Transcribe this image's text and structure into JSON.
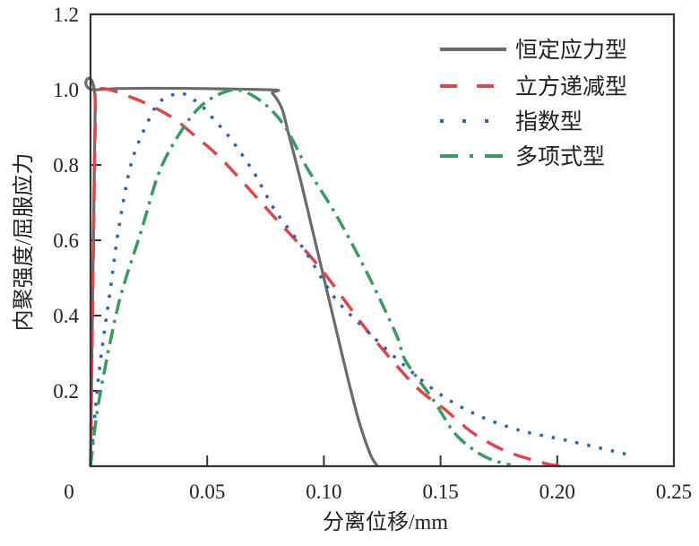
{
  "chart_data": {
    "type": "line",
    "title": "",
    "xlabel": "分离位移/mm",
    "ylabel": "内聚强度/屈服应力",
    "xlim": [
      0,
      0.25
    ],
    "ylim": [
      0,
      1.2
    ],
    "xticks": [
      0,
      0.05,
      0.1,
      0.15,
      0.2,
      0.25
    ],
    "xtick_labels": [
      "0",
      "0.05",
      "0.10",
      "0.15",
      "0.20",
      "0.25"
    ],
    "yticks": [
      0.2,
      0.4,
      0.6,
      0.8,
      1.0,
      1.2
    ],
    "ytick_labels": [
      "0.2",
      "0.4",
      "0.6",
      "0.8",
      "1.0",
      "1.2"
    ],
    "grid": false,
    "legend_position": "top-right",
    "series": [
      {
        "name": "恒定应力型",
        "color": "#6b6b6b",
        "style": "solid",
        "x": [
          0,
          0.002,
          0.003,
          0.075,
          0.078,
          0.082,
          0.085,
          0.09,
          0.095,
          0.1,
          0.105,
          0.11,
          0.115,
          0.12,
          0.123
        ],
        "y": [
          0,
          0.95,
          1.0,
          1.0,
          0.99,
          0.95,
          0.88,
          0.76,
          0.63,
          0.5,
          0.37,
          0.24,
          0.12,
          0.03,
          0
        ]
      },
      {
        "name": "立方递减型",
        "color": "#d9484d",
        "style": "dashed",
        "x": [
          0,
          0.002,
          0.003,
          0.019,
          0.034,
          0.045,
          0.057,
          0.079,
          0.098,
          0.119,
          0.139,
          0.152,
          0.164,
          0.178,
          0.195,
          0.203
        ],
        "y": [
          0,
          0.9,
          1.0,
          0.976,
          0.93,
          0.876,
          0.81,
          0.66,
          0.53,
          0.357,
          0.214,
          0.15,
          0.088,
          0.04,
          0.007,
          0
        ]
      },
      {
        "name": "指数型",
        "color": "#2f63b0",
        "style": "dotted",
        "x": [
          0,
          0.0035,
          0.0085,
          0.0123,
          0.0177,
          0.025,
          0.03,
          0.039,
          0.047,
          0.053,
          0.06,
          0.07,
          0.079,
          0.091,
          0.101,
          0.107,
          0.12,
          0.134,
          0.15,
          0.166,
          0.184,
          0.203,
          0.231
        ],
        "y": [
          0,
          0.24,
          0.47,
          0.64,
          0.81,
          0.92,
          0.97,
          0.99,
          0.96,
          0.92,
          0.87,
          0.78,
          0.68,
          0.58,
          0.48,
          0.43,
          0.35,
          0.27,
          0.19,
          0.135,
          0.095,
          0.07,
          0.03
        ]
      },
      {
        "name": "多项式型",
        "color": "#3a9a62",
        "style": "dashdot",
        "x": [
          0,
          0.0035,
          0.012,
          0.0215,
          0.03,
          0.041,
          0.05,
          0.062,
          0.073,
          0.083,
          0.093,
          0.105,
          0.118,
          0.131,
          0.135,
          0.147,
          0.156,
          0.165,
          0.172,
          0.18
        ],
        "y": [
          0,
          0.17,
          0.43,
          0.62,
          0.79,
          0.91,
          0.97,
          1.0,
          0.97,
          0.905,
          0.79,
          0.67,
          0.52,
          0.35,
          0.28,
          0.175,
          0.088,
          0.04,
          0.017,
          0.003
        ]
      }
    ]
  }
}
